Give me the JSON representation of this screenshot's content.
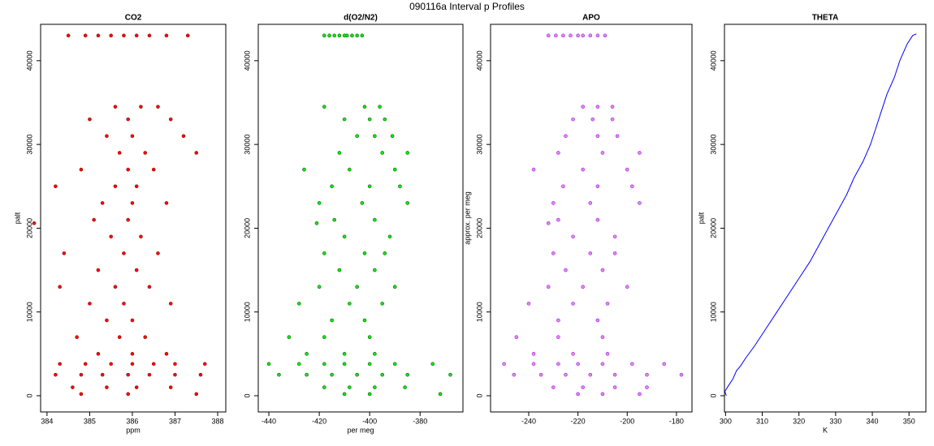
{
  "title": "090116a   Interval p Profiles",
  "chart_data": [
    {
      "type": "scatter",
      "title": "CO2",
      "xlabel": "ppm",
      "ylabel": "palt",
      "color": "#ff0000",
      "stroke": "#8b1a1a",
      "xlim": [
        383.85,
        388.19
      ],
      "ylim": [
        -1936,
        44340
      ],
      "xticks": [
        384,
        385,
        386,
        387,
        388
      ],
      "yticks": [
        0,
        10000,
        20000,
        30000,
        40000
      ],
      "x": [
        384.5,
        384.9,
        385.2,
        385.5,
        385.8,
        386.1,
        386.4,
        386.8,
        387.3,
        385.6,
        386.2,
        386.6,
        385.0,
        385.9,
        386.9,
        385.4,
        386.0,
        387.2,
        385.7,
        386.3,
        387.5,
        384.8,
        385.9,
        386.5,
        384.2,
        385.6,
        386.1,
        385.3,
        386.0,
        386.8,
        385.1,
        385.9,
        383.7,
        385.5,
        386.2,
        384.4,
        385.8,
        386.6,
        385.2,
        386.1,
        384.3,
        385.6,
        386.4,
        385.0,
        385.8,
        386.9,
        385.4,
        386.0,
        384.7,
        385.7,
        386.3,
        385.2,
        386.0,
        386.8,
        384.3,
        384.9,
        385.5,
        386.0,
        386.5,
        387.0,
        387.7,
        384.2,
        384.8,
        385.3,
        385.9,
        386.4,
        387.0,
        387.6,
        384.6,
        385.4,
        386.1,
        386.9,
        384.8,
        385.9,
        387.5
      ],
      "y": [
        43000,
        43000,
        43000,
        43000,
        43000,
        43000,
        43000,
        43000,
        43000,
        34500,
        34500,
        34500,
        33000,
        33000,
        33000,
        31000,
        31000,
        31000,
        29000,
        29000,
        29000,
        27000,
        27000,
        27000,
        25000,
        25000,
        25000,
        23000,
        23000,
        23000,
        21000,
        21000,
        20600,
        19000,
        19000,
        17000,
        17000,
        17000,
        15000,
        15000,
        13000,
        13000,
        13000,
        11000,
        11000,
        11000,
        9000,
        9000,
        7000,
        7000,
        7000,
        5000,
        5000,
        5000,
        3800,
        3800,
        3800,
        3800,
        3800,
        3800,
        3800,
        2500,
        2500,
        2500,
        2500,
        2500,
        2500,
        2500,
        1000,
        1000,
        1000,
        1000,
        200,
        200,
        200
      ]
    },
    {
      "type": "scatter",
      "title": "d(O2/N2)",
      "xlabel": "per meg",
      "color": "#00ee00",
      "stroke": "#1a5c1a",
      "xlim": [
        -444.2,
        -363
      ],
      "ylim": [
        -1936,
        44340
      ],
      "xticks": [
        -440,
        -420,
        -400,
        -380
      ],
      "yticks": [
        0,
        10000,
        20000,
        30000,
        40000
      ],
      "x": [
        -418,
        -416,
        -414,
        -412,
        -410,
        -409,
        -407,
        -405,
        -403,
        -418,
        -402,
        -396,
        -410,
        -400,
        -394,
        -405,
        -398,
        -391,
        -412,
        -395,
        -385,
        -426,
        -408,
        -390,
        -415,
        -400,
        -388,
        -420,
        -403,
        -385,
        -414,
        -398,
        -421,
        -410,
        -392,
        -418,
        -402,
        -394,
        -412,
        -398,
        -420,
        -405,
        -390,
        -428,
        -408,
        -395,
        -415,
        -402,
        -432,
        -418,
        -400,
        -425,
        -410,
        -398,
        -440,
        -428,
        -418,
        -410,
        -400,
        -390,
        -375,
        -436,
        -425,
        -415,
        -405,
        -395,
        -385,
        -368,
        -418,
        -408,
        -398,
        -386,
        -410,
        -400,
        -372
      ],
      "y": [
        43000,
        43000,
        43000,
        43000,
        43000,
        43000,
        43000,
        43000,
        43000,
        34500,
        34500,
        34500,
        33000,
        33000,
        33000,
        31000,
        31000,
        31000,
        29000,
        29000,
        29000,
        27000,
        27000,
        27000,
        25000,
        25000,
        25000,
        23000,
        23000,
        23000,
        21000,
        21000,
        20600,
        19000,
        19000,
        17000,
        17000,
        17000,
        15000,
        15000,
        13000,
        13000,
        13000,
        11000,
        11000,
        11000,
        9000,
        9000,
        7000,
        7000,
        7000,
        5000,
        5000,
        5000,
        3800,
        3800,
        3800,
        3800,
        3800,
        3800,
        3800,
        2500,
        2500,
        2500,
        2500,
        2500,
        2500,
        2500,
        1000,
        1000,
        1000,
        1000,
        200,
        200,
        200
      ]
    },
    {
      "type": "scatter",
      "title": "APO",
      "ylabel": "approx. per meg",
      "color": "#ee82ee",
      "stroke": "#8a2be2",
      "xlim": [
        -255.5,
        -173.7
      ],
      "ylim": [
        -1936,
        44340
      ],
      "xticks": [
        -240,
        -220,
        -200,
        -180
      ],
      "yticks": [
        0,
        10000,
        20000,
        30000,
        40000
      ],
      "x": [
        -232,
        -229,
        -226,
        -223,
        -220,
        -218,
        -215,
        -212,
        -209,
        -218,
        -212,
        -206,
        -222,
        -214,
        -206,
        -225,
        -212,
        -204,
        -228,
        -210,
        -195,
        -238,
        -218,
        -200,
        -226,
        -212,
        -198,
        -230,
        -215,
        -195,
        -228,
        -212,
        -232,
        -222,
        -205,
        -230,
        -215,
        -205,
        -225,
        -210,
        -232,
        -218,
        -200,
        -240,
        -222,
        -208,
        -228,
        -212,
        -245,
        -228,
        -210,
        -238,
        -222,
        -208,
        -250,
        -238,
        -228,
        -220,
        -210,
        -198,
        -185,
        -246,
        -235,
        -225,
        -215,
        -205,
        -192,
        -178,
        -230,
        -218,
        -205,
        -192,
        -220,
        -210,
        -195
      ],
      "y": [
        43000,
        43000,
        43000,
        43000,
        43000,
        43000,
        43000,
        43000,
        43000,
        34500,
        34500,
        34500,
        33000,
        33000,
        33000,
        31000,
        31000,
        31000,
        29000,
        29000,
        29000,
        27000,
        27000,
        27000,
        25000,
        25000,
        25000,
        23000,
        23000,
        23000,
        21000,
        21000,
        20600,
        19000,
        19000,
        17000,
        17000,
        17000,
        15000,
        15000,
        13000,
        13000,
        13000,
        11000,
        11000,
        11000,
        9000,
        9000,
        7000,
        7000,
        7000,
        5000,
        5000,
        5000,
        3800,
        3800,
        3800,
        3800,
        3800,
        3800,
        3800,
        2500,
        2500,
        2500,
        2500,
        2500,
        2500,
        2500,
        1000,
        1000,
        1000,
        1000,
        200,
        200,
        200
      ]
    },
    {
      "type": "line",
      "title": "THETA",
      "xlabel": "K",
      "ylabel": "palt",
      "color": "#0000ff",
      "xlim": [
        299.7,
        354.6
      ],
      "ylim": [
        -1936,
        44340
      ],
      "xticks": [
        300,
        310,
        320,
        330,
        340,
        350
      ],
      "yticks": [
        0,
        10000,
        20000,
        30000,
        40000
      ],
      "x": [
        300.2,
        299.8,
        300.5,
        302,
        303,
        304,
        305.5,
        308,
        311,
        314,
        317,
        320,
        323,
        325.5,
        328,
        330.5,
        333,
        335,
        337.5,
        339.5,
        341,
        342.5,
        344,
        346,
        347.5,
        349.5,
        351,
        352
      ],
      "y": [
        0,
        500,
        1000,
        2000,
        3000,
        3500,
        4500,
        6000,
        8000,
        10000,
        12000,
        14000,
        16000,
        18000,
        20000,
        22000,
        24000,
        26000,
        28000,
        30000,
        32000,
        34000,
        36000,
        38000,
        40000,
        42000,
        43000,
        43200
      ]
    }
  ]
}
